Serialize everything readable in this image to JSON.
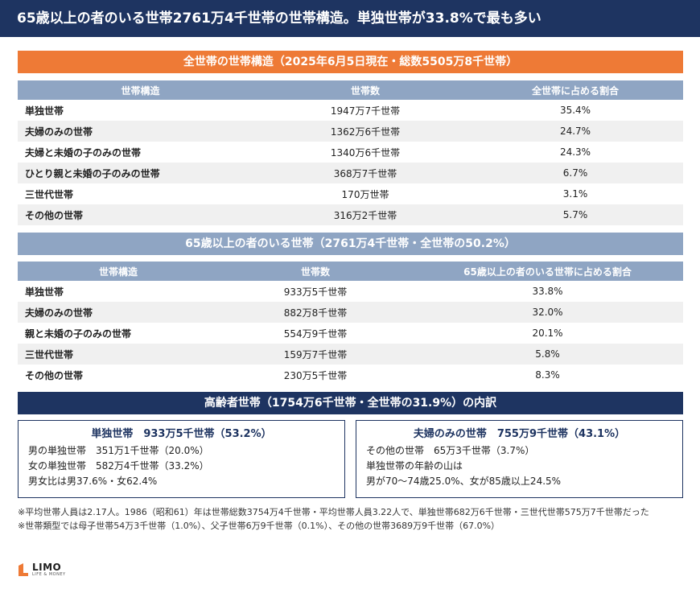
{
  "header": {
    "title": "65歳以上の者のいる世帯2761万4千世帯の世帯構造。単独世帯が33.8%で最も多い"
  },
  "section1": {
    "banner": "全世帯の世帯構造（2025年6月5日現在・総数5505万8千世帯）",
    "columns": [
      "世帯構造",
      "世帯数",
      "全世帯に占める割合"
    ],
    "rows": [
      [
        "単独世帯",
        "1947万7千世帯",
        "35.4%"
      ],
      [
        "夫婦のみの世帯",
        "1362万6千世帯",
        "24.7%"
      ],
      [
        "夫婦と未婚の子のみの世帯",
        "1340万6千世帯",
        "24.3%"
      ],
      [
        "ひとり親と未婚の子のみの世帯",
        "368万7千世帯",
        "6.7%"
      ],
      [
        "三世代世帯",
        "170万世帯",
        "3.1%"
      ],
      [
        "その他の世帯",
        "316万2千世帯",
        "5.7%"
      ]
    ]
  },
  "section2": {
    "banner": "65歳以上の者のいる世帯（2761万4千世帯・全世帯の50.2%）",
    "columns": [
      "世帯構造",
      "世帯数",
      "65歳以上の者のいる世帯に占める割合"
    ],
    "rows": [
      [
        "単独世帯",
        "933万5千世帯",
        "33.8%"
      ],
      [
        "夫婦のみの世帯",
        "882万8千世帯",
        "32.0%"
      ],
      [
        "親と未婚の子のみの世帯",
        "554万9千世帯",
        "20.1%"
      ],
      [
        "三世代世帯",
        "159万7千世帯",
        "5.8%"
      ],
      [
        "その他の世帯",
        "230万5千世帯",
        "8.3%"
      ]
    ]
  },
  "section3": {
    "banner": "高齢者世帯（1754万6千世帯・全世帯の31.9%）の内訳",
    "left": {
      "title": "単独世帯　933万5千世帯（53.2%）",
      "lines": [
        "男の単独世帯　351万1千世帯（20.0%）",
        "女の単独世帯　582万4千世帯（33.2%）",
        "男女比は男37.6%・女62.4%"
      ]
    },
    "right": {
      "title": "夫婦のみの世帯　755万9千世帯（43.1%）",
      "lines": [
        "その他の世帯　65万3千世帯（3.7%）",
        "単独世帯の年齢の山は",
        "男が70〜74歳25.0%、女が85歳以上24.5%"
      ]
    }
  },
  "notes": [
    "※平均世帯人員は2.17人。1986（昭和61）年は世帯総数3754万4千世帯・平均世帯人員3.22人で、単独世帯682万6千世帯・三世代世帯575万7千世帯だった",
    "※世帯類型では母子世帯54万3千世帯（1.0%）、父子世帯6万9千世帯（0.1%）、その他の世帯3689万9千世帯（67.0%）"
  ],
  "logo": {
    "brand": "LIMO",
    "tagline": "LIFE & MONEY",
    "colors": {
      "accent": "#ee7a36",
      "navy": "#1e3461"
    }
  }
}
